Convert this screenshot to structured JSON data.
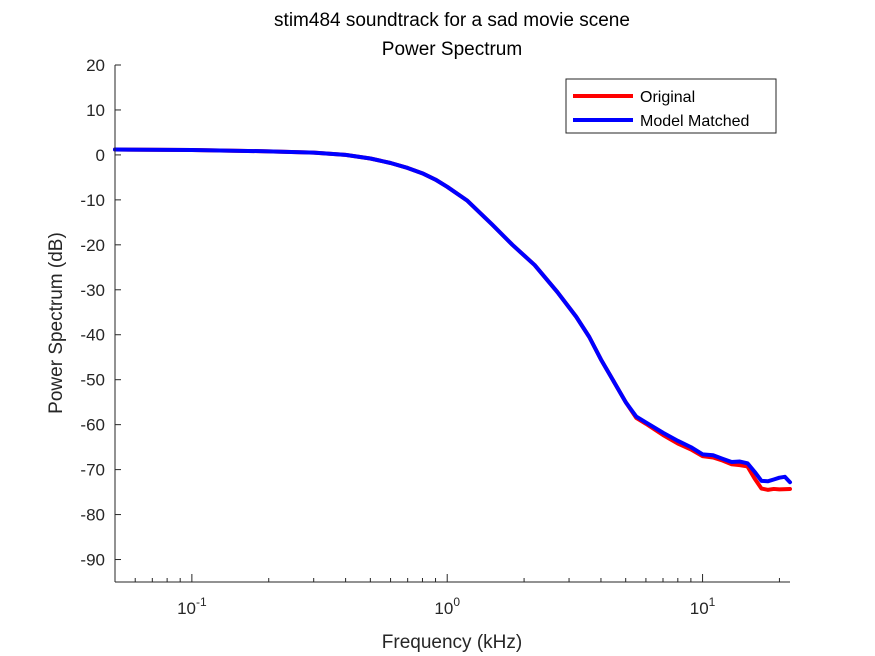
{
  "chart_data": {
    "type": "line",
    "title": "stim484 soundtrack for a sad movie scene",
    "subtitle": "Power Spectrum",
    "xlabel": "Frequency (kHz)",
    "ylabel": "Power Spectrum (dB)",
    "xscale": "log",
    "xlim": [
      0.05,
      22
    ],
    "ylim": [
      -95,
      20
    ],
    "x_ticks": [
      {
        "base": "10",
        "exp": "-1",
        "value": 0.1
      },
      {
        "base": "10",
        "exp": "0",
        "value": 1
      },
      {
        "base": "10",
        "exp": "1",
        "value": 10
      }
    ],
    "y_ticks": [
      "20",
      "10",
      "0",
      "-10",
      "-20",
      "-30",
      "-40",
      "-50",
      "-60",
      "-70",
      "-80",
      "-90"
    ],
    "legend_position": "top-right",
    "grid": false,
    "series": [
      {
        "name": "Original",
        "color": "#ff0000",
        "points": [
          [
            0.05,
            1.2
          ],
          [
            0.1,
            1.1
          ],
          [
            0.2,
            0.8
          ],
          [
            0.3,
            0.5
          ],
          [
            0.4,
            0
          ],
          [
            0.5,
            -0.8
          ],
          [
            0.6,
            -1.8
          ],
          [
            0.7,
            -2.9
          ],
          [
            0.8,
            -4.1
          ],
          [
            0.9,
            -5.5
          ],
          [
            1.0,
            -7.1
          ],
          [
            1.2,
            -10.2
          ],
          [
            1.5,
            -15.5
          ],
          [
            1.8,
            -20
          ],
          [
            2.2,
            -24.5
          ],
          [
            2.7,
            -30.5
          ],
          [
            3.2,
            -36
          ],
          [
            3.6,
            -40.5
          ],
          [
            4.0,
            -45.5
          ],
          [
            4.5,
            -50.5
          ],
          [
            5.0,
            -55
          ],
          [
            5.5,
            -58.5
          ],
          [
            6.0,
            -59.8
          ],
          [
            7.0,
            -62.3
          ],
          [
            8.0,
            -64.2
          ],
          [
            9.0,
            -65.5
          ],
          [
            10,
            -67
          ],
          [
            11,
            -67.3
          ],
          [
            12,
            -68
          ],
          [
            13,
            -68.8
          ],
          [
            14,
            -69
          ],
          [
            15,
            -69.3
          ],
          [
            16,
            -72
          ],
          [
            17,
            -74.2
          ],
          [
            18,
            -74.5
          ],
          [
            19,
            -74.3
          ],
          [
            20,
            -74.4
          ],
          [
            22,
            -74.3
          ]
        ]
      },
      {
        "name": "Model Matched",
        "color": "#0000ff",
        "points": [
          [
            0.05,
            1.2
          ],
          [
            0.1,
            1.1
          ],
          [
            0.2,
            0.8
          ],
          [
            0.3,
            0.5
          ],
          [
            0.4,
            0
          ],
          [
            0.5,
            -0.8
          ],
          [
            0.6,
            -1.8
          ],
          [
            0.7,
            -2.9
          ],
          [
            0.8,
            -4.1
          ],
          [
            0.9,
            -5.5
          ],
          [
            1.0,
            -7.1
          ],
          [
            1.2,
            -10.2
          ],
          [
            1.5,
            -15.5
          ],
          [
            1.8,
            -20
          ],
          [
            2.2,
            -24.5
          ],
          [
            2.7,
            -30.5
          ],
          [
            3.2,
            -36
          ],
          [
            3.6,
            -40.5
          ],
          [
            4.0,
            -45.5
          ],
          [
            4.5,
            -50.5
          ],
          [
            5.0,
            -55
          ],
          [
            5.5,
            -58.2
          ],
          [
            6.0,
            -59.5
          ],
          [
            7.0,
            -61.8
          ],
          [
            8.0,
            -63.6
          ],
          [
            9.0,
            -65
          ],
          [
            10,
            -66.6
          ],
          [
            11,
            -66.8
          ],
          [
            12,
            -67.6
          ],
          [
            13,
            -68.3
          ],
          [
            14,
            -68.2
          ],
          [
            15,
            -68.6
          ],
          [
            16,
            -70.5
          ],
          [
            17,
            -72.5
          ],
          [
            18,
            -72.6
          ],
          [
            19,
            -72.2
          ],
          [
            20,
            -71.8
          ],
          [
            21,
            -71.6
          ],
          [
            22,
            -72.8
          ]
        ]
      }
    ]
  }
}
